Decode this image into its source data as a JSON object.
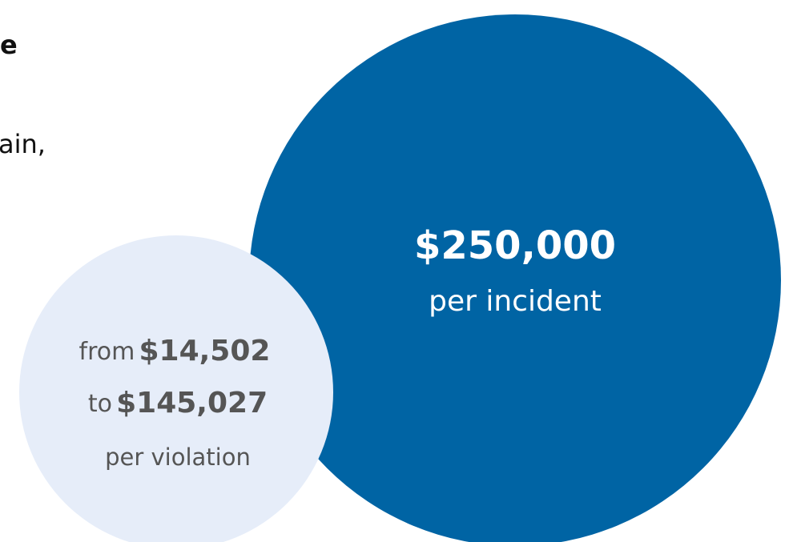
{
  "intro": {
    "heading_fragment": "e",
    "text_fragment": "ain,"
  },
  "large_circle": {
    "amount": "$250,000",
    "unit": "per incident"
  },
  "small_circle": {
    "from_word": "from",
    "from_amount": "$14,502",
    "to_word": "to",
    "to_amount": "$145,027",
    "unit": "per violation"
  }
}
